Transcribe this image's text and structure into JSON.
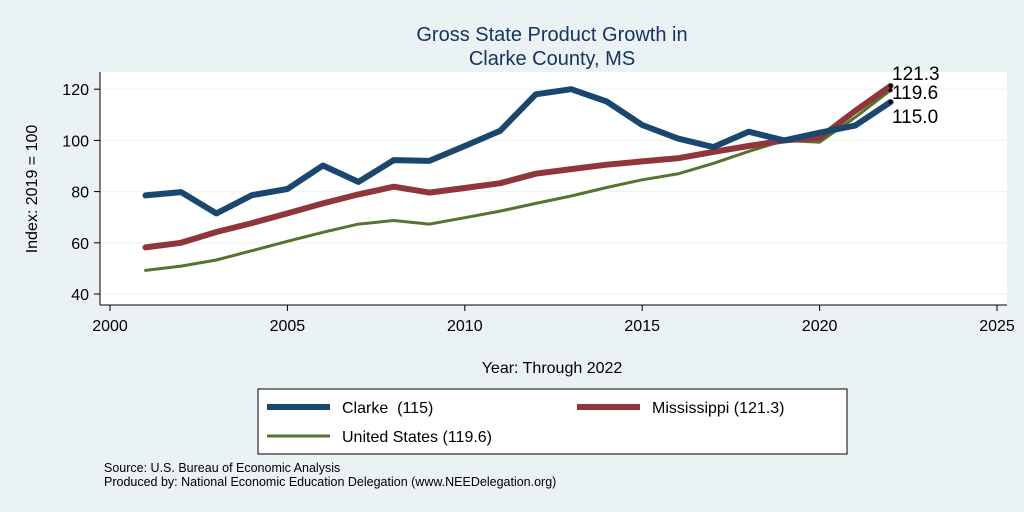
{
  "chart_data": {
    "type": "line",
    "title": "Gross State Product Growth in",
    "subtitle": "Clarke County, MS",
    "xlabel": "Year: Through 2022",
    "ylabel": "Index: 2019 = 100",
    "xlim": [
      2000,
      2025
    ],
    "ylim": [
      40,
      125
    ],
    "xticks": [
      2000,
      2005,
      2010,
      2015,
      2020,
      2025
    ],
    "yticks": [
      40,
      60,
      80,
      100,
      120
    ],
    "grid": true,
    "x": [
      2001,
      2002,
      2003,
      2004,
      2005,
      2006,
      2007,
      2008,
      2009,
      2010,
      2011,
      2012,
      2013,
      2014,
      2015,
      2016,
      2017,
      2018,
      2019,
      2020,
      2021,
      2022
    ],
    "series": [
      {
        "name": "Clarke",
        "legend_label": "Clarke  (115)",
        "color": "#1a476f",
        "end_label": "115.0",
        "values": [
          78.5,
          79.8,
          71.5,
          78.6,
          81.0,
          90.2,
          83.8,
          92.3,
          92.0,
          97.8,
          103.8,
          118.0,
          120.0,
          115.2,
          106.0,
          100.8,
          97.4,
          103.4,
          100.0,
          103.0,
          105.8,
          115.0
        ]
      },
      {
        "name": "Mississippi",
        "legend_label": "Mississippi (121.3)",
        "color": "#90353b",
        "end_label": "121.3",
        "values": [
          58.2,
          60.0,
          64.2,
          67.7,
          71.5,
          75.4,
          78.9,
          81.9,
          79.6,
          81.4,
          83.3,
          87.0,
          88.8,
          90.5,
          91.8,
          93.0,
          95.5,
          97.8,
          100.0,
          101.0,
          111.5,
          121.3
        ]
      },
      {
        "name": "United States",
        "legend_label": "United States (119.6)",
        "color": "#55752f",
        "end_label": "119.6",
        "values": [
          49.2,
          50.9,
          53.3,
          56.9,
          60.6,
          64.1,
          67.3,
          68.7,
          67.3,
          69.8,
          72.4,
          75.4,
          78.3,
          81.6,
          84.6,
          86.9,
          91.0,
          95.7,
          100.0,
          99.3,
          109.0,
          119.6
        ]
      }
    ]
  },
  "footer": {
    "source": "Source: U.S. Bureau of Economic Analysis",
    "produced_by": "Produced by: National Economic Education Delegation (www.NEEDelegation.org)"
  }
}
